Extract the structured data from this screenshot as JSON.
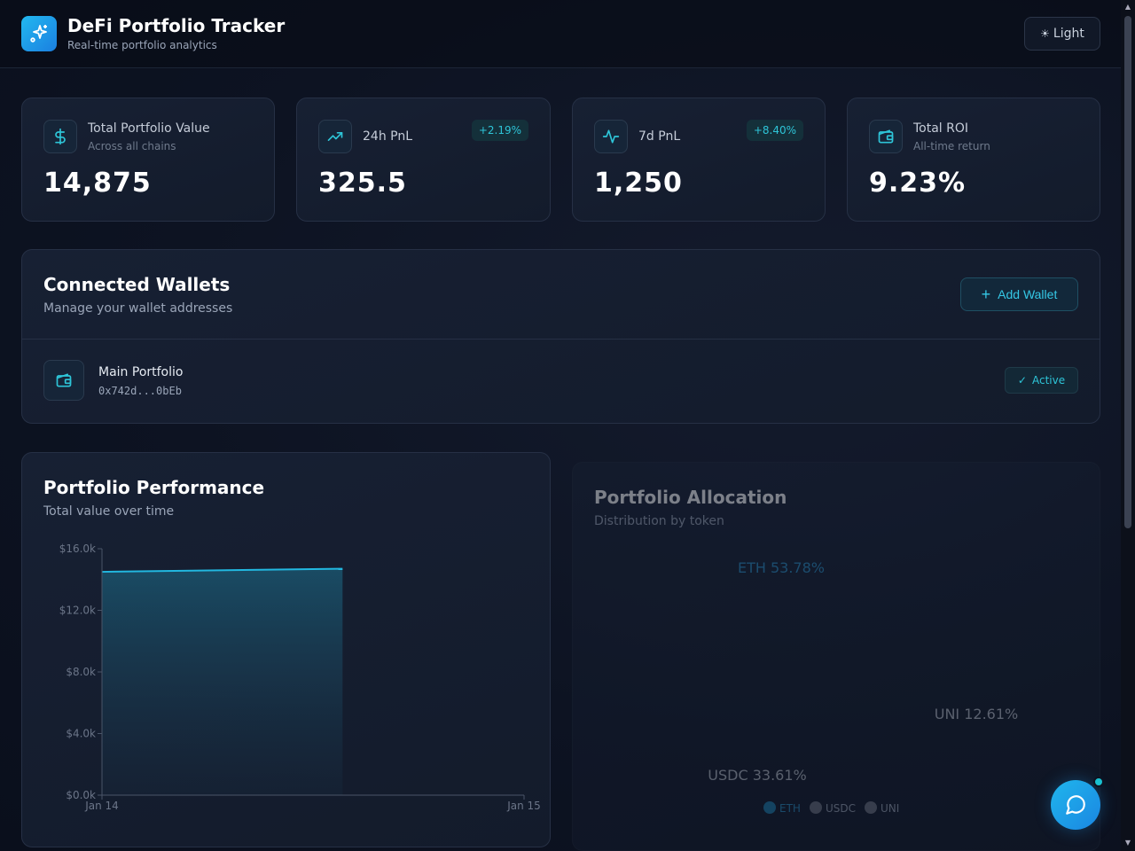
{
  "header": {
    "title": "DeFi Portfolio Tracker",
    "subtitle": "Real-time portfolio analytics",
    "theme_button": {
      "icon": "sun-icon",
      "label": "Light"
    },
    "logo_icon": "sparkles-icon"
  },
  "stats": [
    {
      "label": "Total Portfolio Value",
      "sub": "Across all chains",
      "value": "14,875",
      "icon": "dollar-icon",
      "badge": ""
    },
    {
      "label": "24h PnL",
      "sub": "",
      "value": "325.5",
      "icon": "trending-up-icon",
      "badge": "+2.19%"
    },
    {
      "label": "7d PnL",
      "sub": "",
      "value": "1,250",
      "icon": "activity-icon",
      "badge": "+8.40%"
    },
    {
      "label": "Total ROI",
      "sub": "All-time return",
      "value": "9.23%",
      "icon": "wallet-icon",
      "badge": ""
    }
  ],
  "wallets": {
    "title": "Connected Wallets",
    "subtitle": "Manage your wallet addresses",
    "add_label": "Add Wallet",
    "items": [
      {
        "name": "Main Portfolio",
        "address": "0x742d...0bEb",
        "status": "Active"
      }
    ]
  },
  "performance": {
    "title": "Portfolio Performance",
    "subtitle": "Total value over time"
  },
  "allocation": {
    "title": "Portfolio Allocation",
    "subtitle": "Distribution by token"
  },
  "chart_data": [
    {
      "type": "area",
      "title": "Portfolio Performance",
      "x": [
        "Jan 14",
        "Jan 15"
      ],
      "x_fraction_end": 0.57,
      "y_ticks": [
        "$0.0k",
        "$4.0k",
        "$8.0k",
        "$12.0k",
        "$16.0k"
      ],
      "ylim": [
        0,
        16000
      ],
      "series": [
        {
          "values": [
            14500,
            14700
          ]
        }
      ],
      "color": "#22b8e0"
    },
    {
      "type": "pie",
      "title": "Portfolio Allocation",
      "labels": [
        "ETH",
        "USDC",
        "UNI"
      ],
      "values": [
        53.78,
        33.61,
        12.61
      ],
      "slice_labels": [
        "ETH 53.78%",
        "USDC 33.61%",
        "UNI 12.61%"
      ],
      "colors": [
        "#1e7fb0",
        "#6b7280",
        "#6b7280"
      ]
    }
  ],
  "colors": {
    "accent": "#22b8e0",
    "background": "#0d1322",
    "card": "#172033"
  }
}
